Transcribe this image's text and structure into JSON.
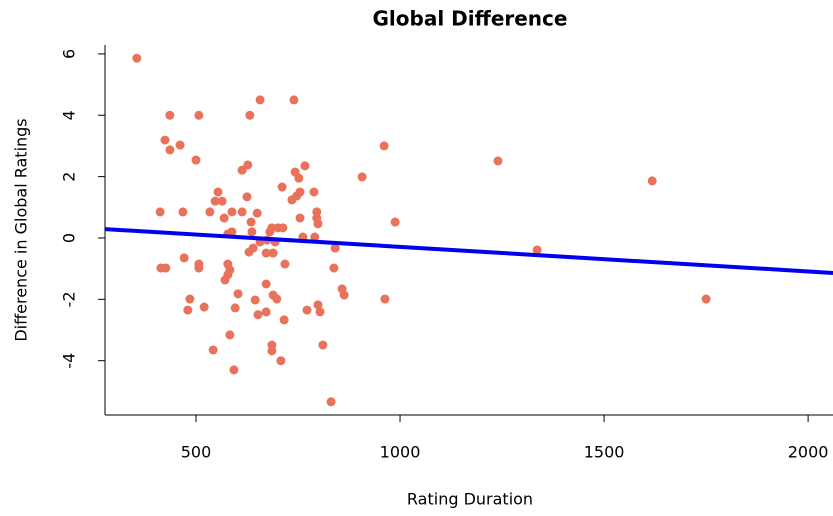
{
  "chart_data": {
    "type": "scatter",
    "title": "Global Difference",
    "x_label": "Rating Duration",
    "y_label": "Difference in Global Ratings",
    "series": [
      {
        "color": "#e8735a",
        "x": [
          355,
          436,
          507,
          424,
          436,
          461,
          500,
          412,
          468,
          414,
          426,
          471,
          485,
          480,
          507,
          507,
          520,
          534,
          547,
          554,
          564,
          569,
          578,
          588,
          588,
          578,
          578,
          571,
          583,
          542,
          583,
          596,
          603,
          593,
          613,
          613,
          625,
          627,
          632,
          635,
          637,
          630,
          640,
          657,
          650,
          657,
          645,
          652,
          672,
          674,
          681,
          686,
          694,
          672,
          689,
          672,
          686,
          686,
          689,
          698,
          701,
          713,
          718,
          716,
          740,
          711,
          735,
          743,
          747,
          752,
          755,
          755,
          767,
          762,
          772,
          708,
          789,
          796,
          796,
          791,
          799,
          799,
          804,
          811,
          831,
          841,
          838,
          858,
          863,
          907,
          961,
          963,
          988,
          1240,
          1336,
          1618,
          1750
        ],
        "values": [
          5.86,
          4.0,
          4.0,
          3.19,
          2.87,
          3.03,
          2.54,
          0.85,
          0.85,
          -0.98,
          -0.98,
          -0.65,
          -1.99,
          -2.35,
          -0.85,
          -0.98,
          -2.25,
          0.85,
          1.2,
          1.5,
          1.2,
          0.65,
          0.13,
          0.2,
          0.85,
          -0.85,
          -1.2,
          -1.37,
          -1.04,
          -3.65,
          -3.16,
          -2.28,
          -1.82,
          -4.3,
          2.21,
          0.85,
          1.34,
          2.38,
          4.0,
          0.52,
          0.2,
          -0.46,
          -0.33,
          4.5,
          0.81,
          -0.13,
          -2.02,
          -2.5,
          -2.41,
          -0.07,
          0.2,
          0.33,
          -0.13,
          -0.49,
          -0.49,
          -1.5,
          -3.49,
          -3.68,
          -1.86,
          -1.99,
          0.33,
          0.33,
          -0.85,
          -2.67,
          4.5,
          1.66,
          1.24,
          2.15,
          1.37,
          1.95,
          1.5,
          0.65,
          2.35,
          0.03,
          -2.35,
          -4.0,
          1.5,
          0.65,
          0.85,
          0.03,
          0.46,
          -2.18,
          -2.41,
          -3.49,
          -5.34,
          -0.33,
          -0.98,
          -1.66,
          -1.86,
          1.99,
          3.0,
          -1.99,
          0.52,
          2.51,
          -0.39,
          1.86,
          -1.99
        ]
      }
    ],
    "fit_line": {
      "color": "#0000ee",
      "x": [
        277,
        2061
      ],
      "values": [
        0.29,
        -1.14
      ]
    },
    "xlim": [
      277,
      2061
    ],
    "ylim": [
      -5.77,
      6.29
    ],
    "xticks": [
      500,
      1000,
      1500,
      2000
    ],
    "yticks": [
      -4,
      -2,
      0,
      2,
      4,
      6
    ]
  }
}
